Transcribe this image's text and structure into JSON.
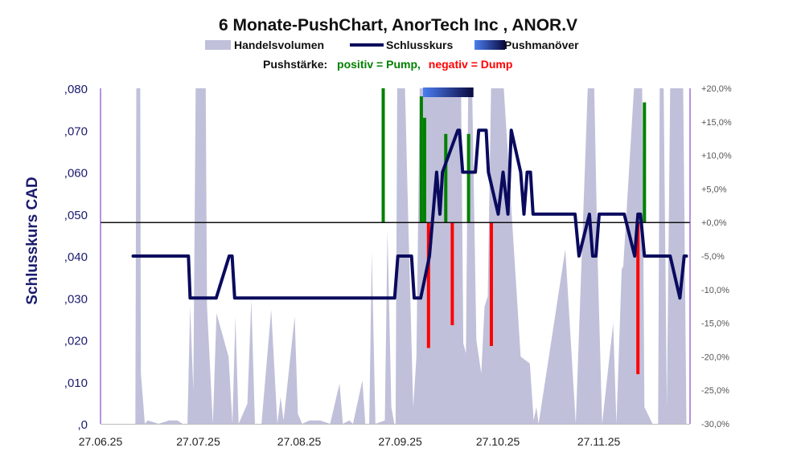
{
  "chart_data": {
    "type": "line",
    "title": "6 Monate-PushChart, AnorTech Inc , ANOR.V",
    "subtitle_label": "Pushstärke:",
    "subtitle_positive": "positiv = Pump,",
    "subtitle_negative": "negativ = Dump",
    "legend": [
      {
        "name": "Handelsvolumen",
        "type": "area",
        "color": "#c0c0da"
      },
      {
        "name": "Schlusskurs",
        "type": "line",
        "color": "#0a0a5e"
      },
      {
        "name": "Pushmanöver",
        "type": "band",
        "color_from": "#4a7ef0",
        "color_to": "#0a0a40"
      }
    ],
    "legend_placement": "top-center",
    "ylabel": "Schlusskurs CAD",
    "y_left": {
      "range": [
        0,
        0.08
      ],
      "ticks": [
        0,
        0.01,
        0.02,
        0.03,
        0.04,
        0.05,
        0.06,
        0.07,
        0.08
      ],
      "tick_labels": [
        ",0",
        ",010",
        ",020",
        ",030",
        ",040",
        ",050",
        ",060",
        ",070",
        ",080"
      ]
    },
    "y_right": {
      "range": [
        -30,
        20
      ],
      "ticks": [
        -30,
        -25,
        -20,
        -15,
        -10,
        -5,
        0,
        5,
        10,
        15,
        20
      ],
      "tick_labels": [
        "-30,0%",
        "-25,0%",
        "-20,0%",
        "-15,0%",
        "-10,0%",
        "-5,0%",
        "+0,0%",
        "+5,0%",
        "+10,0%",
        "+15,0%",
        "+20,0%"
      ]
    },
    "x": {
      "unit": "days since 27.06.25",
      "range": [
        0,
        181
      ],
      "ticks": [
        0,
        30,
        61,
        92,
        122,
        153
      ],
      "tick_labels": [
        "27.06.25",
        "27.07.25",
        "27.08.25",
        "27.09.25",
        "27.10.25",
        "27.11.25"
      ]
    },
    "colors": {
      "volume": "#c0c0da",
      "price": "#0a0a5e",
      "pump": "#008000",
      "dump": "#ff0000",
      "zero_line": "#111111",
      "axis": "#6a2ab8",
      "title_green": "#008000",
      "title_red": "#ff0000"
    },
    "price_series": {
      "name": "Schlusskurs",
      "points": [
        [
          10,
          0.04
        ],
        [
          27,
          0.04
        ],
        [
          27.5,
          0.03
        ],
        [
          35.5,
          0.03
        ],
        [
          39.5,
          0.04
        ],
        [
          40.4,
          0.04
        ],
        [
          41.2,
          0.03
        ],
        [
          90.3,
          0.03
        ],
        [
          91.3,
          0.04
        ],
        [
          95.5,
          0.04
        ],
        [
          96.3,
          0.03
        ],
        [
          98.3,
          0.03
        ],
        [
          101,
          0.04
        ],
        [
          103.2,
          0.06
        ],
        [
          104.2,
          0.05
        ],
        [
          105,
          0.06
        ],
        [
          109.7,
          0.07
        ],
        [
          110.2,
          0.07
        ],
        [
          111.2,
          0.06
        ],
        [
          115.1,
          0.06
        ],
        [
          116.1,
          0.07
        ],
        [
          118.4,
          0.07
        ],
        [
          119.1,
          0.06
        ],
        [
          122.1,
          0.05
        ],
        [
          123.6,
          0.06
        ],
        [
          125.1,
          0.05
        ],
        [
          126.1,
          0.07
        ],
        [
          129,
          0.06
        ],
        [
          130,
          0.05
        ],
        [
          131,
          0.06
        ],
        [
          132,
          0.06
        ],
        [
          132.8,
          0.05
        ],
        [
          145.7,
          0.05
        ],
        [
          146.9,
          0.04
        ],
        [
          150.1,
          0.05
        ],
        [
          151.1,
          0.04
        ],
        [
          152.1,
          0.04
        ],
        [
          153.1,
          0.05
        ],
        [
          160.8,
          0.05
        ],
        [
          164,
          0.04
        ],
        [
          165,
          0.05
        ],
        [
          165.8,
          0.05
        ],
        [
          167,
          0.04
        ],
        [
          174.9,
          0.04
        ],
        [
          177.9,
          0.03
        ],
        [
          179.2,
          0.04
        ],
        [
          179.9,
          0.04
        ]
      ]
    },
    "volume_series": {
      "name": "Handelsvolumen",
      "unit": "% of visible scale (>100 clipped)",
      "points": [
        [
          10.7,
          0
        ],
        [
          11,
          110
        ],
        [
          12.2,
          110
        ],
        [
          12.4,
          15
        ],
        [
          13.6,
          0
        ],
        [
          14.5,
          1
        ],
        [
          17.8,
          0
        ],
        [
          21.1,
          1
        ],
        [
          23.6,
          1
        ],
        [
          25.2,
          0
        ],
        [
          26.7,
          0
        ],
        [
          27.5,
          35
        ],
        [
          28.5,
          10
        ],
        [
          29.2,
          110
        ],
        [
          32.3,
          110
        ],
        [
          32.7,
          35
        ],
        [
          34.5,
          0
        ],
        [
          35.6,
          33
        ],
        [
          39.3,
          20
        ],
        [
          40.5,
          0
        ],
        [
          41.4,
          32
        ],
        [
          42.4,
          0
        ],
        [
          45.1,
          6
        ],
        [
          46.3,
          37
        ],
        [
          47.4,
          0
        ],
        [
          49.4,
          0
        ],
        [
          52.4,
          34
        ],
        [
          54.3,
          0
        ],
        [
          55.3,
          8
        ],
        [
          56.2,
          1
        ],
        [
          59.6,
          32
        ],
        [
          60.6,
          3
        ],
        [
          61.9,
          0
        ],
        [
          64.1,
          1
        ],
        [
          67.4,
          1
        ],
        [
          70.5,
          0
        ],
        [
          73.4,
          12
        ],
        [
          74.4,
          0
        ],
        [
          76.4,
          1
        ],
        [
          77.5,
          0
        ],
        [
          80.4,
          13
        ],
        [
          81.3,
          0
        ],
        [
          82.5,
          0
        ],
        [
          83.3,
          51
        ],
        [
          84.4,
          0
        ],
        [
          87.3,
          1
        ],
        [
          88.1,
          58
        ],
        [
          89.3,
          5
        ],
        [
          90.2,
          0
        ],
        [
          90.6,
          0
        ],
        [
          91.1,
          110
        ],
        [
          93.5,
          110
        ],
        [
          94.5,
          60
        ],
        [
          96,
          5
        ],
        [
          97,
          20
        ],
        [
          98,
          110
        ],
        [
          110.7,
          110
        ],
        [
          111.4,
          24
        ],
        [
          112.2,
          21
        ],
        [
          112.9,
          110
        ],
        [
          114.1,
          110
        ],
        [
          115.4,
          25
        ],
        [
          116.9,
          15
        ],
        [
          117.9,
          35
        ],
        [
          118.9,
          38
        ],
        [
          119.9,
          110
        ],
        [
          122.8,
          110
        ],
        [
          123.8,
          100
        ],
        [
          129,
          20
        ],
        [
          131.8,
          18
        ],
        [
          133,
          1
        ],
        [
          133.8,
          5
        ],
        [
          134.5,
          0
        ],
        [
          142.7,
          52
        ],
        [
          145.9,
          0
        ],
        [
          149.6,
          110
        ],
        [
          151.6,
          110
        ],
        [
          152.6,
          50
        ],
        [
          154,
          0
        ],
        [
          157.4,
          30
        ],
        [
          158.4,
          0
        ],
        [
          160,
          46
        ],
        [
          160.5,
          47
        ],
        [
          163.8,
          110
        ],
        [
          166.3,
          110
        ],
        [
          167,
          5
        ],
        [
          169.5,
          0
        ],
        [
          171.2,
          0
        ],
        [
          171.7,
          110
        ],
        [
          172.9,
          110
        ],
        [
          173.9,
          5
        ],
        [
          174.9,
          110
        ],
        [
          178.9,
          110
        ],
        [
          179.9,
          0
        ]
      ]
    },
    "push_series": {
      "name": "Pushstärke",
      "unit": "%",
      "bars": [
        [
          86.8,
          20
        ],
        [
          98.5,
          18.8
        ],
        [
          99.5,
          15.6
        ],
        [
          100.7,
          -18.7
        ],
        [
          106,
          13.2
        ],
        [
          108,
          -15.3
        ],
        [
          113,
          13.2
        ],
        [
          120,
          -18.4
        ],
        [
          165,
          -22.6
        ],
        [
          167,
          17.9
        ]
      ]
    },
    "push_maneuver_band": {
      "start_day": 99,
      "end_day": 114.5
    }
  }
}
